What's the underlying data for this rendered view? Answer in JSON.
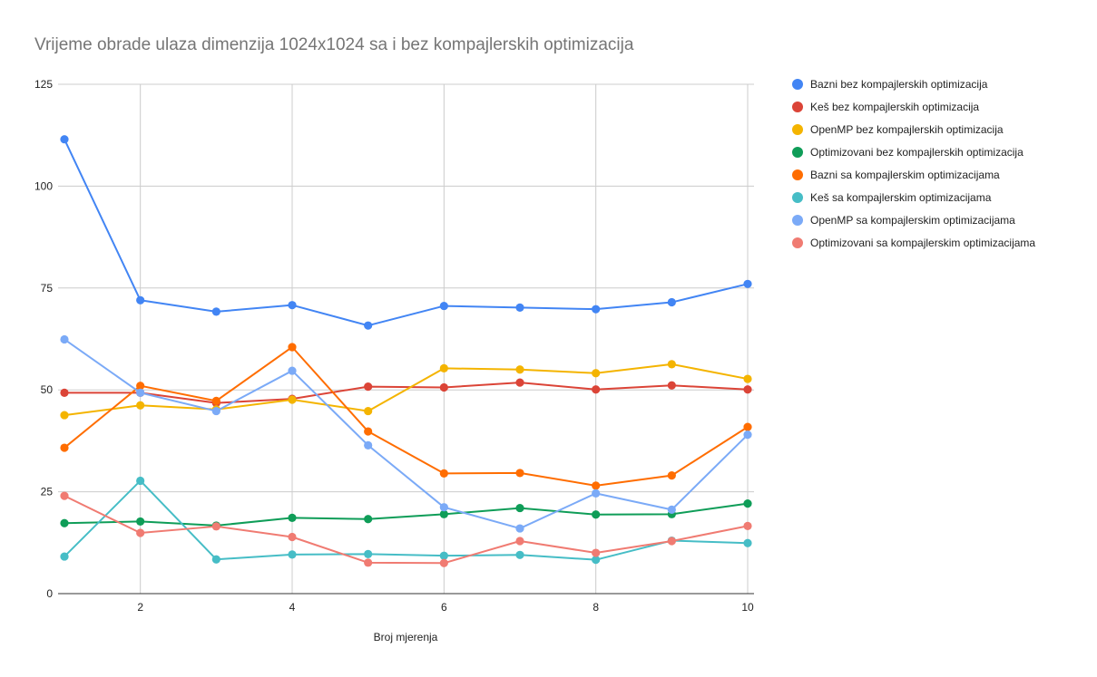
{
  "chart_data": {
    "type": "line",
    "title": "Vrijeme obrade ulaza dimenzija 1024x1024 sa i bez kompajlerskih optimizacija",
    "xlabel": "Broj mjerenja",
    "ylabel": "",
    "x": [
      1,
      2,
      3,
      4,
      5,
      6,
      7,
      8,
      9,
      10
    ],
    "xlim": [
      1,
      10
    ],
    "ylim": [
      0,
      125
    ],
    "x_ticks": [
      2,
      4,
      6,
      8,
      10
    ],
    "y_ticks": [
      0,
      25,
      50,
      75,
      100,
      125
    ],
    "grid": true,
    "legend_position": "right",
    "series": [
      {
        "name": "Bazni bez kompajlerskih optimizacija",
        "color": "#4285f4",
        "values": [
          111.5,
          72.0,
          69.2,
          70.8,
          65.8,
          70.6,
          70.2,
          69.8,
          71.5,
          76.0
        ]
      },
      {
        "name": "Keš bez kompajlerskih optimizacija",
        "color": "#db4437",
        "values": [
          49.3,
          49.3,
          46.8,
          47.8,
          50.8,
          50.6,
          51.8,
          50.1,
          51.1,
          50.1
        ]
      },
      {
        "name": "OpenMP bez kompajlerskih optimizacija",
        "color": "#f4b400",
        "values": [
          43.8,
          46.2,
          45.2,
          47.6,
          44.8,
          55.3,
          55.0,
          54.1,
          56.3,
          52.7
        ]
      },
      {
        "name": "Optimizovani bez kompajlerskih optimizacija",
        "color": "#0f9d58",
        "values": [
          17.3,
          17.7,
          16.7,
          18.6,
          18.3,
          19.5,
          21.0,
          19.4,
          19.5,
          22.1
        ]
      },
      {
        "name": "Bazni sa kompajlerskim optimizacijama",
        "color": "#ff6d00",
        "values": [
          35.8,
          51.0,
          47.3,
          60.5,
          39.8,
          29.5,
          29.6,
          26.5,
          29.0,
          40.9
        ]
      },
      {
        "name": "Keš sa kompajlerskim optimizacijama",
        "color": "#46bdc6",
        "values": [
          9.1,
          27.7,
          8.4,
          9.6,
          9.7,
          9.3,
          9.5,
          8.3,
          13.0,
          12.4
        ]
      },
      {
        "name": "OpenMP sa kompajlerskim optimizacijama",
        "color": "#7baaf7",
        "values": [
          62.4,
          49.3,
          44.8,
          54.7,
          36.4,
          21.2,
          16.0,
          24.6,
          20.6,
          39.0
        ]
      },
      {
        "name": "Optimizovani sa kompajlerskim optimizacijama",
        "color": "#f07b72",
        "values": [
          24.0,
          14.9,
          16.5,
          13.9,
          7.6,
          7.5,
          12.9,
          10.0,
          12.9,
          16.6
        ]
      }
    ]
  }
}
